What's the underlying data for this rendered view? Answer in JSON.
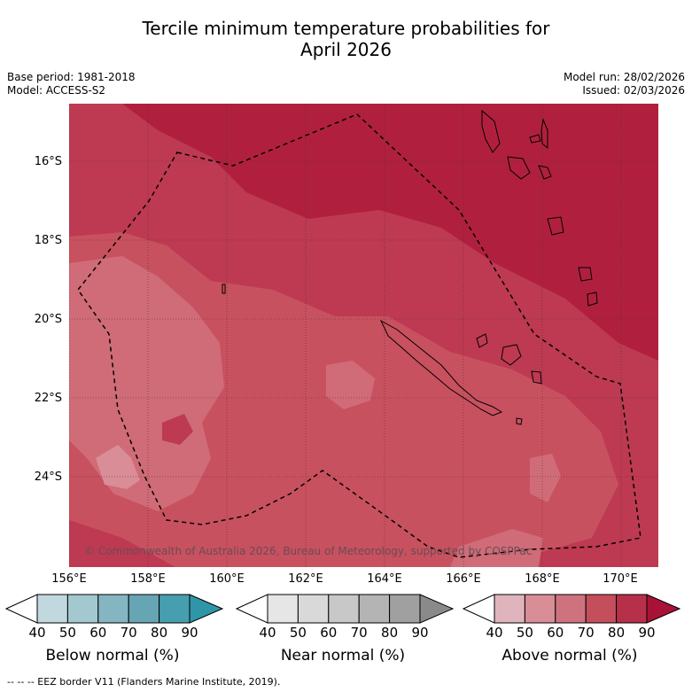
{
  "title": {
    "line1": "Tercile minimum temperature probabilities for",
    "line2": "April 2026"
  },
  "meta": {
    "base_period": "Base period: 1981-2018",
    "model": "Model: ACCESS-S2",
    "model_run": "Model run: 28/02/2026",
    "issued": "Issued: 02/03/2026"
  },
  "map": {
    "lat_labels": [
      "16°S",
      "18°S",
      "20°S",
      "22°S",
      "24°S"
    ],
    "lon_labels": [
      "156°E",
      "158°E",
      "160°E",
      "162°E",
      "164°E",
      "166°E",
      "168°E",
      "170°E"
    ],
    "copyright": "© Commonwealth of Australia 2026, Bureau of Meteorology, supported by COSPPac"
  },
  "colorbars": [
    {
      "label": "Below normal (%)",
      "ticks": [
        "40",
        "50",
        "60",
        "70",
        "80",
        "90"
      ],
      "colors": [
        "#ffffff",
        "#c0d8de",
        "#a3c8cf",
        "#84b6c1",
        "#66a5b3",
        "#479eae",
        "#2f96a7"
      ]
    },
    {
      "label": "Near normal (%)",
      "ticks": [
        "40",
        "50",
        "60",
        "70",
        "80",
        "90"
      ],
      "colors": [
        "#ffffff",
        "#e6e6e6",
        "#d9d9d9",
        "#c8c8c8",
        "#b4b4b4",
        "#a0a0a0",
        "#8a8a8a"
      ]
    },
    {
      "label": "Above normal (%)",
      "ticks": [
        "40",
        "50",
        "60",
        "70",
        "80",
        "90"
      ],
      "colors": [
        "#ffffff",
        "#e0b4bd",
        "#d88d97",
        "#ce737d",
        "#c34e5c",
        "#b73049",
        "#a81236"
      ]
    }
  ],
  "footnote": "-- -- -- EEZ border V11 (Flanders Marine Institute, 2019)."
}
